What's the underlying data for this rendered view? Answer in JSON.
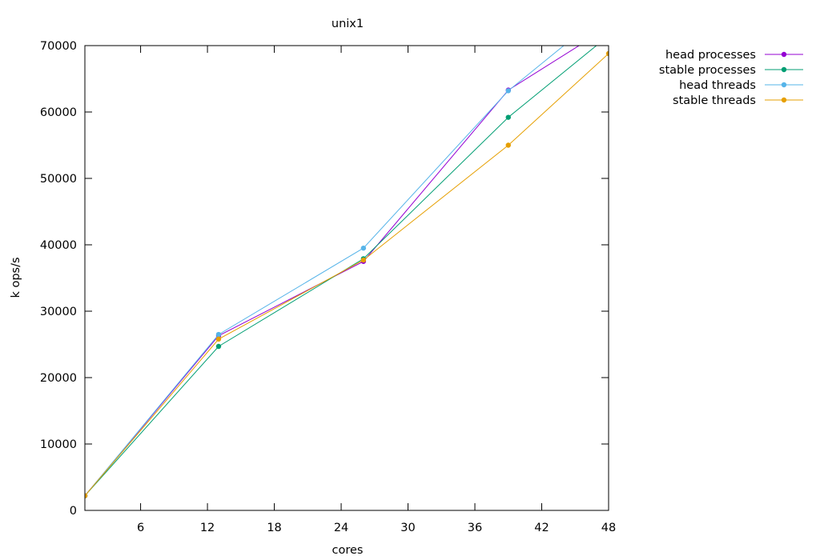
{
  "chart_data": {
    "type": "line",
    "title": "unix1",
    "xlabel": "cores",
    "ylabel": "k ops/s",
    "xlim": [
      1,
      48
    ],
    "ylim": [
      0,
      70000
    ],
    "xticks": [
      6,
      12,
      18,
      24,
      30,
      36,
      42,
      48
    ],
    "yticks": [
      0,
      10000,
      20000,
      30000,
      40000,
      50000,
      60000,
      70000
    ],
    "grid": false,
    "legend_position": "outside-top-right",
    "series": [
      {
        "name": "head processes",
        "color": "#9400d3",
        "points": [
          [
            1,
            2200
          ],
          [
            13,
            26300
          ],
          [
            26,
            37500
          ],
          [
            39,
            63300
          ],
          [
            48,
            72800
          ]
        ]
      },
      {
        "name": "stable processes",
        "color": "#009e73",
        "points": [
          [
            1,
            2200
          ],
          [
            13,
            24700
          ],
          [
            26,
            37900
          ],
          [
            39,
            59200
          ],
          [
            48,
            71500
          ]
        ]
      },
      {
        "name": "head threads",
        "color": "#56b4e9",
        "points": [
          [
            1,
            2200
          ],
          [
            13,
            26500
          ],
          [
            26,
            39500
          ],
          [
            39,
            63200
          ],
          [
            48,
            75500
          ]
        ]
      },
      {
        "name": "stable threads",
        "color": "#e69f00",
        "points": [
          [
            1,
            2200
          ],
          [
            13,
            25800
          ],
          [
            26,
            37700
          ],
          [
            39,
            55000
          ],
          [
            48,
            68800
          ]
        ]
      }
    ]
  }
}
